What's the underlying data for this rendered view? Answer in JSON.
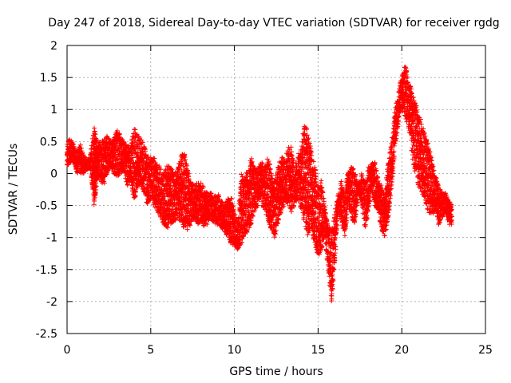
{
  "chart_data": {
    "type": "scatter",
    "title": "Day 247 of 2018, Sidereal Day-to-day VTEC variation (SDTVAR) for receiver rgdg",
    "xlabel": "GPS time / hours",
    "ylabel": "SDTVAR / TECUs",
    "xlim": [
      0,
      25
    ],
    "ylim": [
      -2.5,
      2
    ],
    "xticks": [
      0,
      5,
      10,
      15,
      20,
      25
    ],
    "xtick_labels": [
      "0",
      "5",
      "10",
      "15",
      "20",
      "25"
    ],
    "yticks": [
      -2.5,
      -2,
      -1.5,
      -1,
      -0.5,
      0,
      0.5,
      1,
      1.5,
      2
    ],
    "ytick_labels": [
      "-2.5",
      "-2",
      "-1.5",
      "-1",
      "-0.5",
      "0",
      "0.5",
      "1",
      "1.5",
      "2"
    ],
    "grid": true,
    "marker": "+",
    "color": "#ff0000",
    "series": [
      {
        "name": "SDTVAR",
        "trace_note": "approximate envelope of the dense point cloud, read from the plot",
        "x": [
          0.0,
          0.2,
          0.4,
          0.6,
          0.8,
          1.0,
          1.2,
          1.4,
          1.6,
          1.7,
          1.8,
          2.0,
          2.2,
          2.4,
          2.6,
          2.8,
          3.0,
          3.2,
          3.4,
          3.6,
          3.8,
          4.0,
          4.2,
          4.4,
          4.6,
          4.8,
          5.0,
          5.2,
          5.4,
          5.6,
          5.8,
          6.0,
          6.2,
          6.4,
          6.6,
          6.8,
          7.0,
          7.2,
          7.4,
          7.6,
          7.8,
          8.0,
          8.2,
          8.4,
          8.6,
          8.8,
          9.0,
          9.2,
          9.4,
          9.6,
          9.8,
          10.0,
          10.2,
          10.4,
          10.6,
          10.8,
          11.0,
          11.2,
          11.4,
          11.6,
          11.8,
          12.0,
          12.2,
          12.4,
          12.6,
          12.8,
          13.0,
          13.2,
          13.4,
          13.6,
          13.8,
          14.0,
          14.2,
          14.4,
          14.6,
          14.8,
          15.0,
          15.2,
          15.4,
          15.6,
          15.8,
          16.0,
          16.2,
          16.4,
          16.6,
          16.8,
          17.0,
          17.2,
          17.4,
          17.6,
          17.8,
          18.0,
          18.2,
          18.4,
          18.6,
          18.8,
          19.0,
          19.2,
          19.4,
          19.6,
          19.8,
          20.0,
          20.2,
          20.4,
          20.6,
          20.8,
          21.0,
          21.2,
          21.4,
          21.6,
          21.8,
          22.0,
          22.2,
          22.4,
          22.6,
          22.8,
          23.0
        ],
        "y_low": [
          0.1,
          0.15,
          0.2,
          0.0,
          0.0,
          0.0,
          0.05,
          0.1,
          -0.5,
          -0.3,
          -0.1,
          -0.1,
          -0.2,
          0.0,
          0.1,
          0.0,
          -0.05,
          0.0,
          0.05,
          -0.2,
          -0.1,
          -0.4,
          -0.3,
          -0.2,
          -0.3,
          -0.5,
          -0.4,
          -0.5,
          -0.6,
          -0.7,
          -0.8,
          -0.85,
          -0.8,
          -0.75,
          -0.7,
          -0.8,
          -0.85,
          -0.9,
          -0.8,
          -0.7,
          -0.8,
          -0.75,
          -0.85,
          -0.8,
          -0.7,
          -0.8,
          -0.8,
          -0.85,
          -0.9,
          -1.0,
          -1.1,
          -1.15,
          -1.2,
          -1.1,
          -1.0,
          -0.9,
          -0.8,
          -0.6,
          -0.5,
          -0.4,
          -0.6,
          -0.7,
          -0.9,
          -1.0,
          -0.8,
          -0.6,
          -0.5,
          -0.45,
          -0.6,
          -0.5,
          -0.4,
          -0.6,
          -0.8,
          -1.0,
          -0.9,
          -1.1,
          -1.3,
          -1.2,
          -1.0,
          -1.5,
          -2.05,
          -1.4,
          -0.6,
          -0.8,
          -1.0,
          -0.5,
          -0.7,
          -0.8,
          -0.3,
          -0.5,
          -0.9,
          -0.6,
          -0.3,
          -0.5,
          -0.6,
          -0.9,
          -1.0,
          -0.7,
          -0.2,
          0.4,
          0.8,
          1.0,
          0.9,
          0.7,
          0.3,
          0.0,
          -0.2,
          -0.3,
          -0.5,
          -0.6,
          -0.7,
          -0.6,
          -0.8,
          -0.7,
          -0.6,
          -0.8,
          -0.8
        ],
        "y_high": [
          0.5,
          0.55,
          0.45,
          0.35,
          0.45,
          0.3,
          0.2,
          0.3,
          0.8,
          0.6,
          0.5,
          0.5,
          0.55,
          0.6,
          0.5,
          0.55,
          0.7,
          0.6,
          0.5,
          0.45,
          0.4,
          0.75,
          0.6,
          0.55,
          0.45,
          0.3,
          0.25,
          0.25,
          0.15,
          0.1,
          0.0,
          0.15,
          0.1,
          0.0,
          0.05,
          0.3,
          0.35,
          0.1,
          -0.1,
          -0.2,
          -0.1,
          -0.15,
          -0.2,
          -0.3,
          -0.3,
          -0.35,
          -0.3,
          -0.4,
          -0.5,
          -0.4,
          -0.3,
          -0.6,
          -0.8,
          0.0,
          -0.1,
          0.1,
          0.25,
          0.1,
          0.05,
          0.2,
          0.1,
          0.3,
          0.05,
          -0.1,
          0.1,
          0.3,
          0.2,
          0.4,
          0.45,
          0.1,
          0.3,
          0.4,
          0.85,
          0.6,
          0.4,
          0.1,
          -0.2,
          -0.1,
          -0.5,
          -0.8,
          -0.9,
          -0.6,
          -0.3,
          -0.1,
          -0.3,
          0.05,
          0.1,
          0.05,
          -0.2,
          0.0,
          -0.1,
          0.1,
          0.15,
          0.2,
          -0.1,
          -0.2,
          -0.3,
          0.3,
          0.5,
          1.0,
          1.25,
          1.55,
          1.7,
          1.5,
          1.3,
          1.1,
          1.0,
          0.8,
          0.6,
          0.5,
          0.2,
          0.0,
          -0.2,
          -0.3,
          -0.3,
          -0.4,
          -0.5
        ]
      }
    ]
  }
}
